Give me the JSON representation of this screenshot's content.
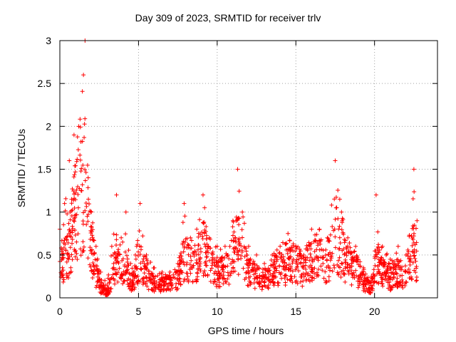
{
  "chart_data": {
    "type": "scatter",
    "title": "Day 309 of 2023, SRMTID for receiver trlv",
    "xlabel": "GPS time / hours",
    "ylabel": "SRMTID / TECUs",
    "xlim": [
      0,
      24
    ],
    "ylim": [
      0,
      3
    ],
    "xticks": [
      0,
      5,
      10,
      15,
      20
    ],
    "yticks": [
      0,
      0.5,
      1,
      1.5,
      2,
      2.5,
      3
    ],
    "ytick_labels": [
      "0",
      "0.5",
      "1",
      "1.5",
      "2",
      "2.5",
      "3"
    ],
    "grid": true,
    "marker": "+",
    "color": "#ff0000",
    "envelope": [
      [
        0.0,
        0.45,
        0.8
      ],
      [
        0.3,
        0.5,
        1.1
      ],
      [
        0.6,
        0.7,
        1.6
      ],
      [
        0.9,
        1.1,
        1.9
      ],
      [
        1.2,
        1.3,
        2.0
      ],
      [
        1.5,
        1.5,
        2.6
      ],
      [
        1.6,
        1.7,
        3.0
      ],
      [
        1.8,
        1.1,
        1.4
      ],
      [
        2.0,
        0.7,
        1.0
      ],
      [
        2.3,
        0.35,
        0.6
      ],
      [
        2.6,
        0.15,
        0.3
      ],
      [
        3.0,
        0.07,
        0.15
      ],
      [
        3.3,
        0.25,
        0.6
      ],
      [
        3.6,
        0.55,
        1.2
      ],
      [
        3.9,
        0.4,
        0.7
      ],
      [
        4.2,
        0.5,
        1.0
      ],
      [
        4.5,
        0.2,
        0.4
      ],
      [
        4.8,
        0.25,
        0.5
      ],
      [
        5.1,
        0.5,
        1.1
      ],
      [
        5.5,
        0.3,
        0.5
      ],
      [
        6.0,
        0.2,
        0.35
      ],
      [
        6.5,
        0.18,
        0.3
      ],
      [
        7.0,
        0.2,
        0.3
      ],
      [
        7.5,
        0.25,
        0.4
      ],
      [
        7.9,
        0.55,
        1.1
      ],
      [
        8.3,
        0.45,
        0.7
      ],
      [
        8.7,
        0.5,
        0.8
      ],
      [
        9.1,
        0.7,
        1.2
      ],
      [
        9.5,
        0.45,
        0.7
      ],
      [
        10.0,
        0.35,
        0.6
      ],
      [
        10.5,
        0.35,
        0.6
      ],
      [
        11.0,
        0.55,
        0.9
      ],
      [
        11.3,
        0.8,
        1.5
      ],
      [
        11.6,
        0.6,
        1.0
      ],
      [
        12.0,
        0.35,
        0.6
      ],
      [
        12.5,
        0.3,
        0.5
      ],
      [
        13.0,
        0.25,
        0.4
      ],
      [
        13.5,
        0.35,
        0.5
      ],
      [
        14.0,
        0.4,
        0.6
      ],
      [
        14.5,
        0.4,
        0.75
      ],
      [
        15.0,
        0.5,
        0.6
      ],
      [
        15.5,
        0.35,
        0.5
      ],
      [
        16.0,
        0.55,
        0.8
      ],
      [
        16.5,
        0.55,
        0.8
      ],
      [
        17.0,
        0.45,
        0.7
      ],
      [
        17.5,
        0.9,
        1.6
      ],
      [
        17.9,
        0.6,
        1.0
      ],
      [
        18.3,
        0.45,
        0.7
      ],
      [
        18.8,
        0.4,
        0.6
      ],
      [
        19.3,
        0.2,
        0.35
      ],
      [
        19.8,
        0.15,
        0.25
      ],
      [
        20.1,
        0.5,
        1.2
      ],
      [
        20.5,
        0.35,
        0.6
      ],
      [
        21.0,
        0.25,
        0.45
      ],
      [
        21.5,
        0.35,
        0.6
      ],
      [
        22.0,
        0.3,
        0.5
      ],
      [
        22.5,
        0.7,
        1.5
      ],
      [
        22.7,
        0.45,
        0.9
      ]
    ]
  }
}
